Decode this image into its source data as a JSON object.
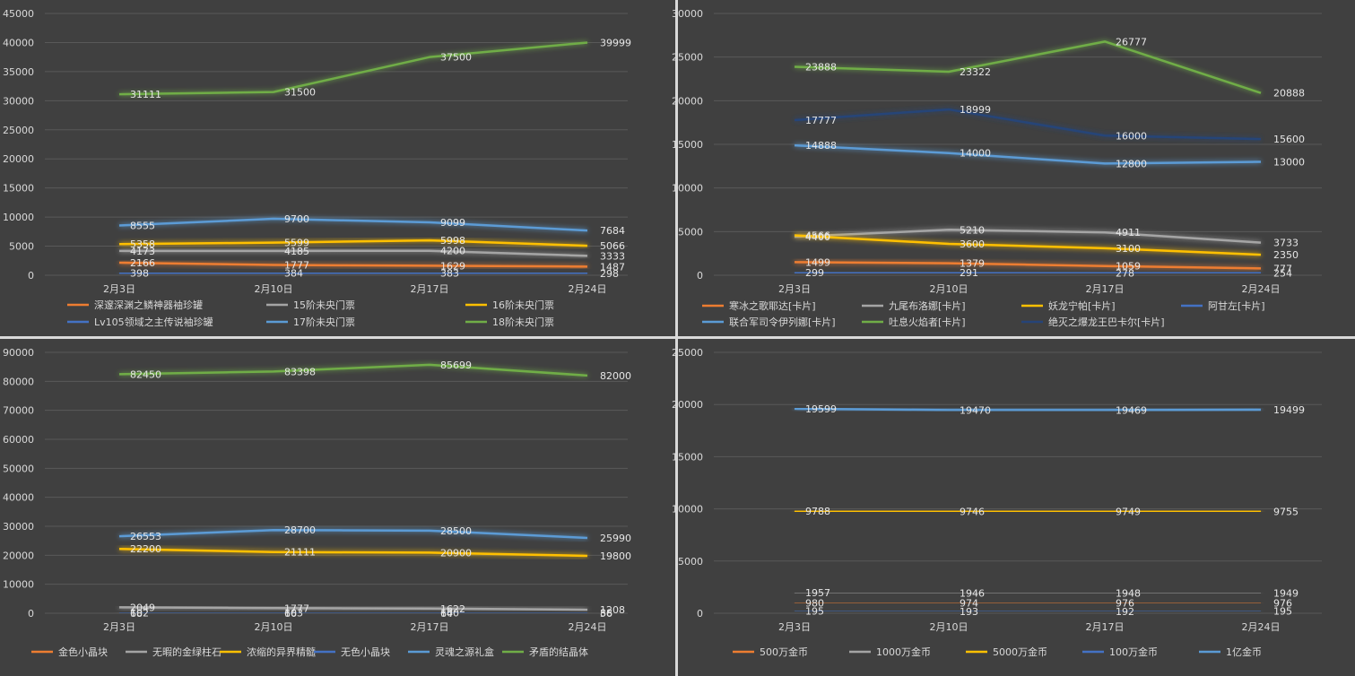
{
  "chart_data": [
    {
      "type": "line",
      "categories": [
        "2月3日",
        "2月10日",
        "2月17日",
        "2月24日"
      ],
      "ylim": [
        0,
        45000
      ],
      "yticks": [
        0,
        5000,
        10000,
        15000,
        20000,
        25000,
        30000,
        35000,
        40000,
        45000
      ],
      "legend_position": "bottom",
      "series": [
        {
          "name": "深邃深渊之鳞神器袖珍罐",
          "color": "#ed7d31",
          "values": [
            2166,
            1777,
            1629,
            1487
          ]
        },
        {
          "name": "15阶未央门票",
          "color": "#a5a5a5",
          "values": [
            4173,
            4185,
            4200,
            3333
          ]
        },
        {
          "name": "16阶未央门票",
          "color": "#ffc000",
          "values": [
            5358,
            5599,
            5998,
            5066
          ]
        },
        {
          "name": "Lv105领域之主传说袖珍罐",
          "color": "#4472c4",
          "values": [
            398,
            384,
            383,
            298
          ]
        },
        {
          "name": "17阶未央门票",
          "color": "#5b9bd5",
          "values": [
            8555,
            9700,
            9099,
            7684
          ]
        },
        {
          "name": "18阶未央门票",
          "color": "#70ad47",
          "values": [
            31111,
            31500,
            37500,
            39999
          ]
        }
      ]
    },
    {
      "type": "line",
      "categories": [
        "2月3日",
        "2月10日",
        "2月17日",
        "2月24日"
      ],
      "ylim": [
        0,
        30000
      ],
      "yticks": [
        0,
        5000,
        10000,
        15000,
        20000,
        25000,
        30000
      ],
      "legend_position": "bottom",
      "series": [
        {
          "name": "寒冰之歌耶达[卡片]",
          "color": "#ed7d31",
          "values": [
            1499,
            1379,
            1059,
            777
          ]
        },
        {
          "name": "九尾布洛娜[卡片]",
          "color": "#a5a5a5",
          "values": [
            4400,
            5210,
            4911,
            3733
          ]
        },
        {
          "name": "妖龙宁帕[卡片]",
          "color": "#ffc000",
          "values": [
            4566,
            3600,
            3100,
            2350
          ]
        },
        {
          "name": "阿甘左[卡片]",
          "color": "#4472c4",
          "values": [
            299,
            291,
            278,
            254
          ]
        },
        {
          "name": "联合军司令伊列娜[卡片]",
          "color": "#5b9bd5",
          "values": [
            14888,
            14000,
            12800,
            13000
          ]
        },
        {
          "name": "吐息火焰者[卡片]",
          "color": "#70ad47",
          "values": [
            23888,
            23322,
            26777,
            20888
          ]
        },
        {
          "name": "绝灭之爆龙王巴卡尔[卡片]",
          "color": "#264478",
          "values": [
            17777,
            18999,
            16000,
            15600
          ]
        }
      ]
    },
    {
      "type": "line",
      "categories": [
        "2月3日",
        "2月10日",
        "2月17日",
        "2月24日"
      ],
      "ylim": [
        0,
        90000
      ],
      "yticks": [
        0,
        10000,
        20000,
        30000,
        40000,
        50000,
        60000,
        70000,
        80000,
        90000
      ],
      "legend_position": "bottom",
      "series": [
        {
          "name": "金色小晶块",
          "color": "#ed7d31",
          "values": [
            68,
            66,
            64,
            56
          ]
        },
        {
          "name": "无暇的金绿柱石",
          "color": "#a5a5a5",
          "values": [
            2049,
            1777,
            1622,
            1208
          ]
        },
        {
          "name": "浓缩的异界精髓",
          "color": "#ffc000",
          "values": [
            22200,
            21111,
            20900,
            19800
          ]
        },
        {
          "name": "无色小晶块",
          "color": "#4472c4",
          "values": [
            102,
            103,
            100,
            88
          ]
        },
        {
          "name": "灵魂之源礼盒",
          "color": "#5b9bd5",
          "values": [
            26553,
            28700,
            28500,
            25990
          ]
        },
        {
          "name": "矛盾的结晶体",
          "color": "#70ad47",
          "values": [
            82450,
            83398,
            85699,
            82000
          ]
        }
      ]
    },
    {
      "type": "line",
      "categories": [
        "2月3日",
        "2月10日",
        "2月17日",
        "2月24日"
      ],
      "ylim": [
        0,
        25000
      ],
      "yticks": [
        0,
        5000,
        10000,
        15000,
        20000,
        25000
      ],
      "legend_position": "bottom",
      "series": [
        {
          "name": "500万金币",
          "color": "#ed7d31",
          "values": [
            980,
            974,
            976,
            976
          ]
        },
        {
          "name": "1000万金币",
          "color": "#a5a5a5",
          "values": [
            1957,
            1946,
            1948,
            1949
          ]
        },
        {
          "name": "5000万金币",
          "color": "#ffc000",
          "values": [
            9788,
            9746,
            9749,
            9755
          ]
        },
        {
          "name": "100万金币",
          "color": "#4472c4",
          "values": [
            195,
            193,
            192,
            195
          ]
        },
        {
          "name": "1亿金币",
          "color": "#5b9bd5",
          "values": [
            19599,
            19470,
            19469,
            19499
          ]
        }
      ]
    }
  ]
}
